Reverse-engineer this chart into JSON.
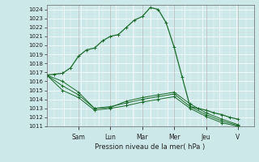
{
  "xlabel": "Pression niveau de la mer( hPa )",
  "bg_color": "#cce8e8",
  "grid_color": "#ffffff",
  "line_color": "#1a6b2a",
  "ylim": [
    1011,
    1024.5
  ],
  "yticks": [
    1011,
    1012,
    1013,
    1014,
    1015,
    1016,
    1017,
    1018,
    1019,
    1020,
    1021,
    1022,
    1023,
    1024
  ],
  "day_labels": [
    "Sam",
    "Lun",
    "Mar",
    "Mer",
    "Jeu",
    "V"
  ],
  "day_positions": [
    2.0,
    4.0,
    6.0,
    8.0,
    10.0,
    12.0
  ],
  "xlim": [
    0.0,
    13.0
  ],
  "series": [
    {
      "x": [
        0,
        0.5,
        1,
        1.5,
        2,
        2.5,
        3,
        3.5,
        4,
        4.5,
        5,
        5.5,
        6,
        6.5,
        7,
        7.5,
        8,
        8.5,
        9,
        9.5,
        10,
        10.5,
        11,
        11.5,
        12
      ],
      "y": [
        1016.7,
        1016.8,
        1016.9,
        1017.5,
        1018.8,
        1019.5,
        1019.7,
        1020.5,
        1021.0,
        1021.2,
        1022.0,
        1022.8,
        1023.2,
        1024.2,
        1024.0,
        1022.5,
        1019.8,
        1016.5,
        1013.2,
        1013.0,
        1012.8,
        1012.5,
        1012.3,
        1012.0,
        1011.8
      ]
    },
    {
      "x": [
        0,
        1,
        2,
        3,
        4,
        5,
        6,
        7,
        8,
        9,
        10,
        11,
        12
      ],
      "y": [
        1016.7,
        1016.0,
        1014.8,
        1013.0,
        1013.1,
        1013.8,
        1014.2,
        1014.5,
        1014.8,
        1013.5,
        1012.5,
        1011.8,
        1011.2
      ]
    },
    {
      "x": [
        0,
        1,
        2,
        3,
        4,
        5,
        6,
        7,
        8,
        9,
        10,
        11,
        12
      ],
      "y": [
        1016.7,
        1015.5,
        1014.5,
        1013.0,
        1013.2,
        1013.6,
        1014.0,
        1014.3,
        1014.6,
        1013.2,
        1012.3,
        1011.6,
        1011.1
      ]
    },
    {
      "x": [
        0,
        1,
        2,
        3,
        4,
        5,
        6,
        7,
        8,
        9,
        10,
        11,
        12
      ],
      "y": [
        1016.7,
        1015.0,
        1014.2,
        1012.8,
        1013.0,
        1013.3,
        1013.7,
        1014.0,
        1014.3,
        1013.0,
        1012.1,
        1011.4,
        1011.0
      ]
    }
  ]
}
